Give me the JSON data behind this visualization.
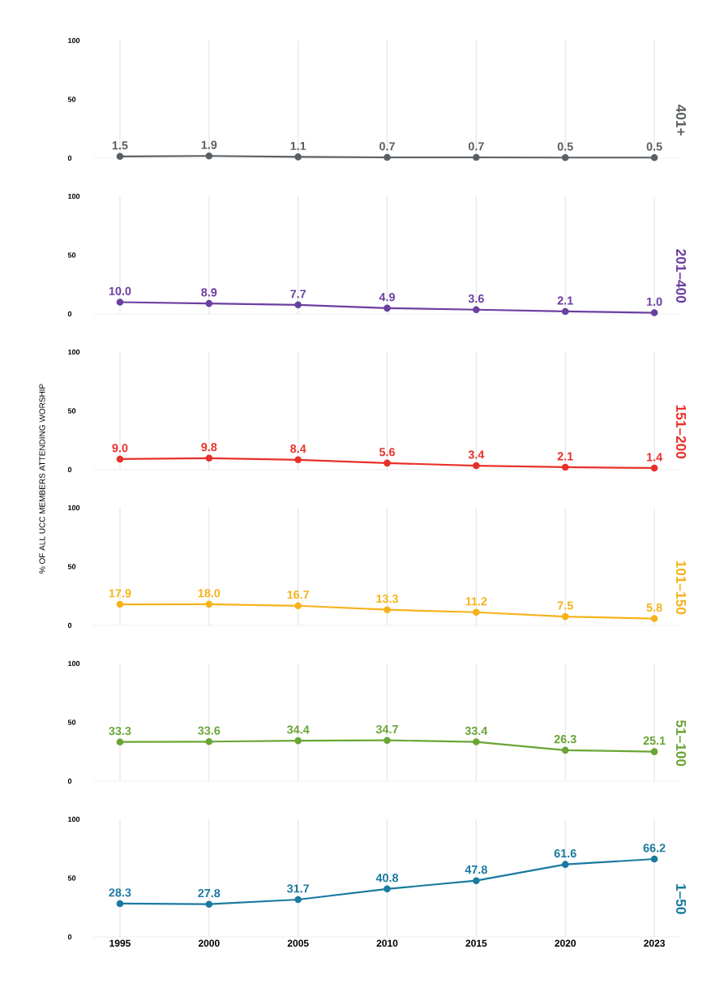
{
  "chart_data": [
    {
      "type": "line",
      "title": "401+",
      "categories": [
        "1995",
        "2000",
        "2005",
        "2010",
        "2015",
        "2020",
        "2023"
      ],
      "series": [
        {
          "color": "#5a5f63",
          "values": [
            1.5,
            1.9,
            1.1,
            0.7,
            0.7,
            0.5,
            0.5
          ],
          "value_labels": [
            "1.5",
            "1.9",
            "1.1",
            "0.7",
            "0.7",
            "0.5",
            "0.5"
          ]
        }
      ],
      "ylim": [
        0,
        100
      ],
      "yticks": [
        0,
        50,
        100
      ],
      "grid": "x",
      "marker": "circle",
      "tick_labels": "y"
    },
    {
      "type": "line",
      "title": "201–400",
      "categories": [
        "1995",
        "2000",
        "2005",
        "2010",
        "2015",
        "2020",
        "2023"
      ],
      "series": [
        {
          "color": "#6b3fa0",
          "values": [
            10.0,
            8.9,
            7.7,
            4.9,
            3.6,
            2.1,
            1.0
          ],
          "value_labels": [
            "10.0",
            "8.9",
            "7.7",
            "4.9",
            "3.6",
            "2.1",
            "1.0"
          ]
        }
      ],
      "ylim": [
        0,
        100
      ],
      "yticks": [
        0,
        50,
        100
      ],
      "grid": "x",
      "marker": "circle",
      "tick_labels": "y"
    },
    {
      "type": "line",
      "title": "151–200",
      "ylabel": "% OF ALL UCC MEMBERS ATTENDING WORSHIP",
      "categories": [
        "1995",
        "2000",
        "2005",
        "2010",
        "2015",
        "2020",
        "2023"
      ],
      "series": [
        {
          "color": "#e8312a",
          "values": [
            9.0,
            9.8,
            8.4,
            5.6,
            3.4,
            2.1,
            1.4
          ],
          "value_labels": [
            "9.0",
            "9.8",
            "8.4",
            "5.6",
            "3.4",
            "2.1",
            "1.4"
          ]
        }
      ],
      "ylim": [
        0,
        100
      ],
      "yticks": [
        0,
        50,
        100
      ],
      "grid": "x",
      "marker": "circle",
      "tick_labels": "y"
    },
    {
      "type": "line",
      "title": "101–150",
      "categories": [
        "1995",
        "2000",
        "2005",
        "2010",
        "2015",
        "2020",
        "2023"
      ],
      "series": [
        {
          "color": "#f7b21b",
          "values": [
            17.9,
            18.0,
            16.7,
            13.3,
            11.2,
            7.5,
            5.8
          ],
          "value_labels": [
            "17.9",
            "18.0",
            "16.7",
            "13.3",
            "11.2",
            "7.5",
            "5.8"
          ]
        }
      ],
      "ylim": [
        0,
        100
      ],
      "yticks": [
        0,
        50,
        100
      ],
      "grid": "x",
      "marker": "circle",
      "tick_labels": "y"
    },
    {
      "type": "line",
      "title": "51–100",
      "categories": [
        "1995",
        "2000",
        "2005",
        "2010",
        "2015",
        "2020",
        "2023"
      ],
      "series": [
        {
          "color": "#6aa535",
          "values": [
            33.3,
            33.6,
            34.4,
            34.7,
            33.4,
            26.3,
            25.1
          ],
          "value_labels": [
            "33.3",
            "33.6",
            "34.4",
            "34.7",
            "33.4",
            "26.3",
            "25.1"
          ]
        }
      ],
      "ylim": [
        0,
        100
      ],
      "yticks": [
        0,
        50,
        100
      ],
      "grid": "x",
      "marker": "circle",
      "tick_labels": "y"
    },
    {
      "type": "line",
      "title": "1–50",
      "categories": [
        "1995",
        "2000",
        "2005",
        "2010",
        "2015",
        "2020",
        "2023"
      ],
      "series": [
        {
          "color": "#1a7aa0",
          "values": [
            28.3,
            27.8,
            31.7,
            40.8,
            47.8,
            61.6,
            66.2
          ],
          "value_labels": [
            "28.3",
            "27.8",
            "31.7",
            "40.8",
            "47.8",
            "61.6",
            "66.2"
          ]
        }
      ],
      "ylim": [
        0,
        100
      ],
      "yticks": [
        0,
        50,
        100
      ],
      "grid": "x",
      "marker": "circle"
    }
  ]
}
